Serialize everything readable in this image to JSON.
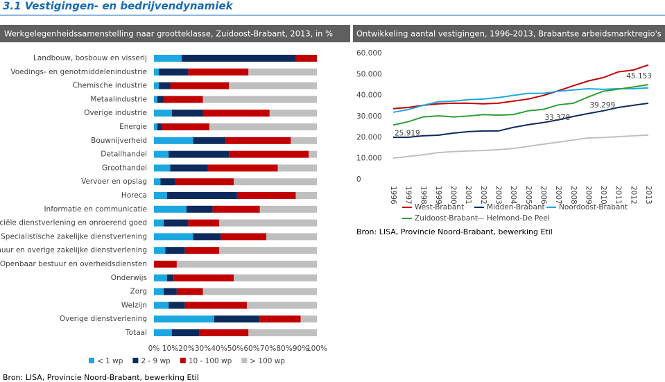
{
  "page_title": "3.1 Vestigingen- en bedrijvendynamiek",
  "chart_data": [
    {
      "type": "bar",
      "orientation": "horizontal",
      "stacked": true,
      "title": "Werkgelegenheidssamenstelling naar grootteklasse, Zuidoost-Brabant, 2013, in %",
      "source": "Bron: LISA, Provincie Noord-Brabant, bewerking Etil",
      "categories": [
        "Landbouw, bosbouw en visserij",
        "Voedings- en genotmiddelenindustrie",
        "Chemische industrie",
        "Metaalindustrie",
        "Overige industrie",
        "Energie",
        "Bouwnijverheid",
        "Detailhandel",
        "Groothandel",
        "Vervoer en opslag",
        "Horeca",
        "Informatie en communicatie",
        "Financiële dienstverlening en onroerend goed",
        "Specialistische zakelijke dienstverlening",
        "Verhuur en overige zakelijke dienstverlening",
        "Openbaar bestuur en overheidsdiensten",
        "Onderwijs",
        "Zorg",
        "Welzijn",
        "Overige dienstverlening",
        "Totaal"
      ],
      "series": [
        {
          "name": "< 1 wp",
          "color": "#1ca7e0",
          "values": [
            17,
            3,
            3,
            2,
            11,
            2,
            24,
            9,
            10,
            4,
            8,
            20,
            6,
            24,
            7,
            0,
            8,
            6,
            9,
            37,
            11
          ]
        },
        {
          "name": "2 - 9 wp",
          "color": "#0d2a5c",
          "values": [
            70,
            18,
            7,
            4,
            19,
            3,
            20,
            37,
            23,
            9,
            43,
            16,
            15,
            17,
            12,
            0,
            4,
            8,
            10,
            28,
            17
          ]
        },
        {
          "name": "10 - 100 wp",
          "color": "#c00000",
          "values": [
            13,
            37,
            36,
            24,
            41,
            29,
            40,
            49,
            43,
            36,
            36,
            29,
            19,
            28,
            21,
            14,
            37,
            16,
            38,
            25,
            30
          ]
        },
        {
          "name": "> 100 wp",
          "color": "#bfbfbf",
          "values": [
            0,
            42,
            54,
            70,
            29,
            66,
            16,
            5,
            24,
            51,
            13,
            35,
            60,
            31,
            60,
            86,
            51,
            70,
            43,
            10,
            42
          ]
        }
      ],
      "xlim": [
        0,
        100
      ],
      "xticks": [
        {
          "value": 0,
          "label": "0%"
        },
        {
          "value": 10,
          "label": "10%"
        },
        {
          "value": 20,
          "label": "20%"
        },
        {
          "value": 30,
          "label": "30%"
        },
        {
          "value": 40,
          "label": "40%"
        },
        {
          "value": 50,
          "label": "50%"
        },
        {
          "value": 60,
          "label": "60%"
        },
        {
          "value": 70,
          "label": "70%"
        },
        {
          "value": 80,
          "label": "80%"
        },
        {
          "value": 90,
          "label": "90%"
        },
        {
          "value": 100,
          "label": "100%"
        }
      ]
    },
    {
      "type": "line",
      "title": "Ontwikkeling aantal vestigingen, 1996-2013, Brabantse arbeidsmarktregio's",
      "source": "Bron: LISA, Provincie Noord-Brabant, bewerking Etil",
      "categories": [
        "1996",
        "1997",
        "1998",
        "1999",
        "2000",
        "2001",
        "2002",
        "2003",
        "2004",
        "2005",
        "2006",
        "2007",
        "2008",
        "2009",
        "2010",
        "2011",
        "2012",
        "2013"
      ],
      "series": [
        {
          "name": "West-Brabant",
          "color": "#c00000",
          "values": [
            33700,
            34300,
            35300,
            36000,
            36300,
            36300,
            36000,
            36300,
            37300,
            38300,
            40000,
            42200,
            44600,
            46900,
            48500,
            51200,
            52100,
            54500
          ]
        },
        {
          "name": "Midden-Brabant",
          "color": "#0d2a5c",
          "values": [
            20100,
            20100,
            20800,
            21100,
            22100,
            22800,
            23100,
            23100,
            24800,
            26100,
            27100,
            28400,
            30000,
            31400,
            32700,
            34300,
            35300,
            36300
          ]
        },
        {
          "name": "Noordoost-Brabant",
          "color": "#1ca7e0",
          "values": [
            32000,
            33300,
            35300,
            37000,
            37300,
            38000,
            38300,
            39000,
            40000,
            41000,
            41000,
            42000,
            42600,
            43200,
            42900,
            43200,
            43200,
            43600
          ]
        },
        {
          "name": "Zuidoost-Brabant",
          "color": "#2e9e3a",
          "values": [
            25919,
            27500,
            29800,
            30300,
            29800,
            30200,
            30900,
            30600,
            30900,
            32700,
            33378,
            35500,
            36300,
            39299,
            42000,
            43000,
            44000,
            45153
          ],
          "value_labels": [
            "25.919",
            null,
            null,
            null,
            null,
            null,
            null,
            null,
            null,
            null,
            "33.378",
            null,
            null,
            "39.299",
            null,
            null,
            null,
            "45.153"
          ]
        },
        {
          "name": "Helmond-De Peel",
          "color": "#bfbfbf",
          "values": [
            10200,
            11000,
            11800,
            12800,
            13300,
            13600,
            13800,
            14200,
            14800,
            15800,
            16800,
            17800,
            18800,
            19800,
            20000,
            20400,
            20800,
            21200
          ]
        }
      ],
      "ylim": [
        0,
        60000
      ],
      "yticks": [
        0,
        {
          "value": 10000,
          "label": "10.000"
        },
        {
          "value": 20000,
          "label": "20.000"
        },
        {
          "value": 30000,
          "label": "30.000"
        },
        {
          "value": 40000,
          "label": "40.000"
        },
        {
          "value": 50000,
          "label": "50.000"
        },
        {
          "value": 60000,
          "label": "60.000"
        }
      ],
      "grid": false
    }
  ]
}
